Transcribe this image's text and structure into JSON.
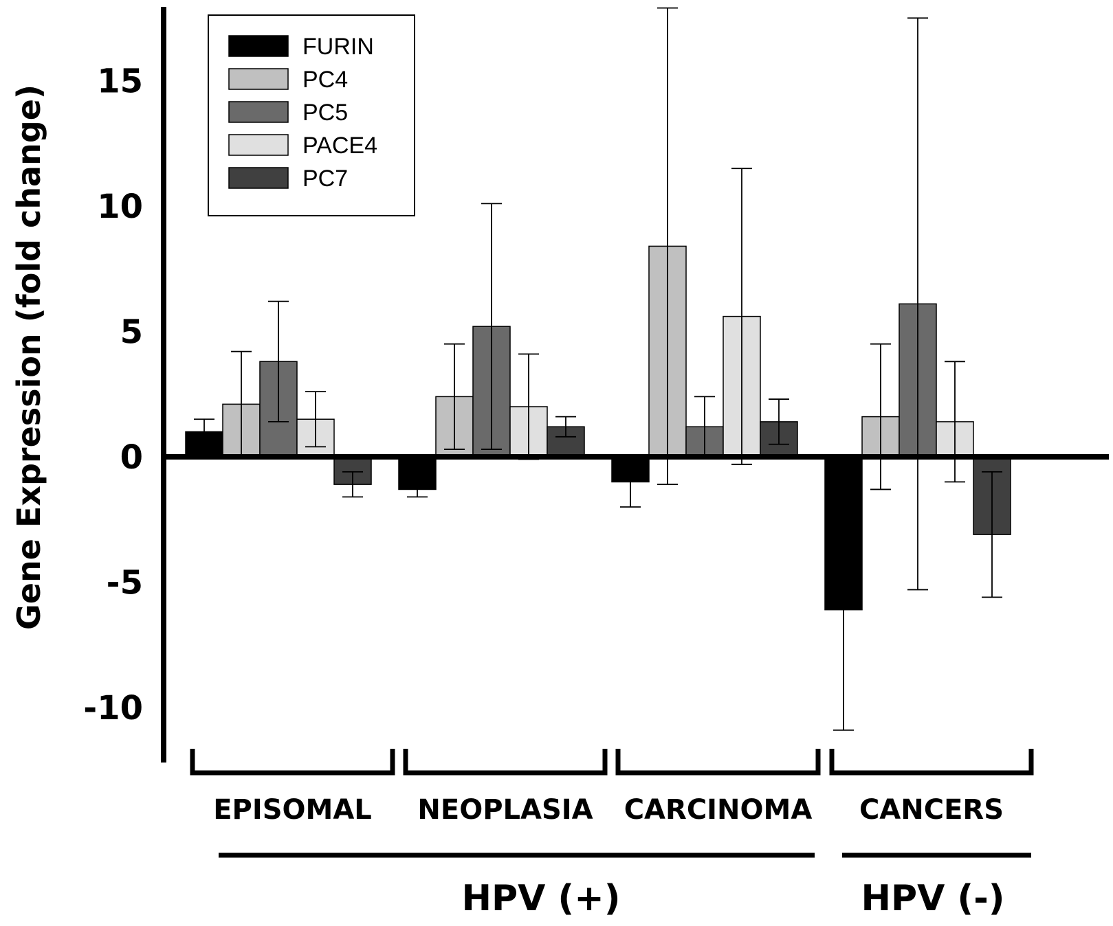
{
  "chart_data": {
    "type": "bar",
    "ylabel": "Gene Expression (fold change)",
    "ylim": [
      -12,
      18
    ],
    "yticks": [
      "15",
      "10",
      "5",
      "0",
      "-5",
      "-10"
    ],
    "ytick_values": [
      15,
      10,
      5,
      0,
      -5,
      -10
    ],
    "categories": [
      "EPISOMAL",
      "NEOPLASIA",
      "CARCINOMA",
      "CANCERS"
    ],
    "groups": [
      {
        "label": "HPV (+)",
        "categories": [
          "EPISOMAL",
          "NEOPLASIA",
          "CARCINOMA"
        ]
      },
      {
        "label": "HPV (-)",
        "categories": [
          "CANCERS"
        ]
      }
    ],
    "legend_position": "top-left",
    "series": [
      {
        "name": "FURIN",
        "color": "#000000",
        "values": [
          1.0,
          -1.3,
          -1.0,
          -6.1
        ],
        "errors": [
          0.5,
          0.3,
          1.0,
          4.8
        ]
      },
      {
        "name": "PC4",
        "color": "#c0c0c0",
        "values": [
          2.1,
          2.4,
          8.4,
          1.6
        ],
        "errors": [
          2.1,
          2.1,
          9.5,
          2.9
        ]
      },
      {
        "name": "PC5",
        "color": "#6a6a6a",
        "values": [
          3.8,
          5.2,
          1.2,
          6.1
        ],
        "errors": [
          2.4,
          4.9,
          1.2,
          11.4
        ]
      },
      {
        "name": "PACE4",
        "color": "#e0e0e0",
        "values": [
          1.5,
          2.0,
          5.6,
          1.4
        ],
        "errors": [
          1.1,
          2.1,
          5.9,
          2.4
        ]
      },
      {
        "name": "PC7",
        "color": "#404040",
        "values": [
          -1.1,
          1.2,
          1.4,
          -3.1
        ],
        "errors": [
          0.5,
          0.4,
          0.9,
          2.5
        ]
      }
    ]
  }
}
